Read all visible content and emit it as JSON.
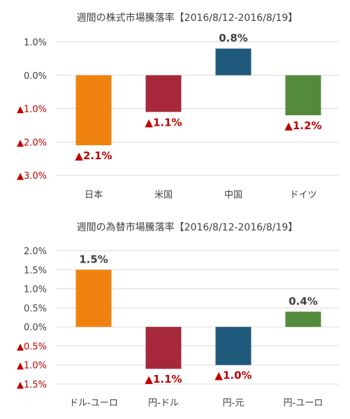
{
  "chart_data": [
    {
      "type": "bar",
      "title": "週間の株式市場騰落率【2016/8/12-2016/8/19】",
      "categories": [
        "日本",
        "米国",
        "中国",
        "ドイツ"
      ],
      "values": [
        -2.1,
        -1.1,
        0.8,
        -1.2
      ],
      "value_labels": [
        "▲2.1%",
        "▲1.1%",
        "0.8%",
        "▲1.2%"
      ],
      "colors": [
        "#f0830f",
        "#a8283b",
        "#1f5a7d",
        "#548a3c"
      ],
      "ylim": [
        -3.0,
        1.0
      ],
      "yticks": [
        1.0,
        0.0,
        -1.0,
        -2.0,
        -3.0
      ],
      "ytick_labels": [
        "1.0%",
        "0.0%",
        "▲1.0%",
        "▲2.0%",
        "▲3.0%"
      ],
      "grid": true
    },
    {
      "type": "bar",
      "title": "週間の為替市場騰落率【2016/8/12-2016/8/19】",
      "categories": [
        "ドル-ユーロ",
        "円-ドル",
        "円-元",
        "円-ユーロ"
      ],
      "values": [
        1.5,
        -1.1,
        -1.0,
        0.4
      ],
      "value_labels": [
        "1.5%",
        "▲1.1%",
        "▲1.0%",
        "0.4%"
      ],
      "colors": [
        "#f0830f",
        "#a8283b",
        "#1f5a7d",
        "#548a3c"
      ],
      "ylim": [
        -1.5,
        2.0
      ],
      "yticks": [
        2.0,
        1.5,
        1.0,
        0.5,
        0.0,
        -0.5,
        -1.0,
        -1.5
      ],
      "ytick_labels": [
        "2.0%",
        "1.5%",
        "1.0%",
        "0.5%",
        "0.0%",
        "▲0.5%",
        "▲1.0%",
        "▲1.5%"
      ],
      "grid": true
    }
  ]
}
